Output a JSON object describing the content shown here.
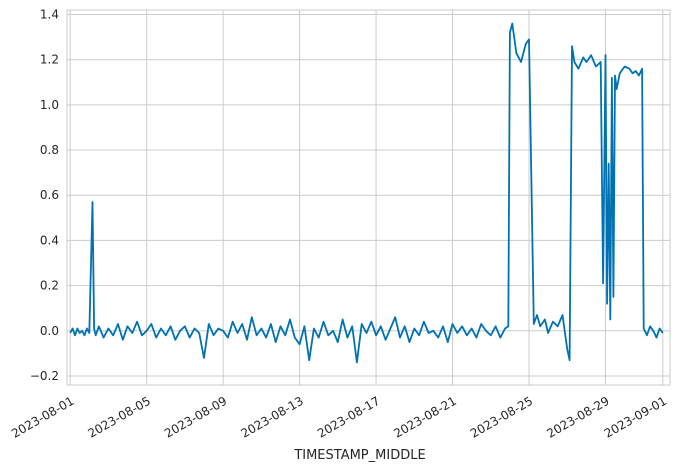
{
  "chart_data": {
    "type": "line",
    "title": "",
    "xlabel": "TIMESTAMP_MIDDLE",
    "ylabel": "",
    "grid": true,
    "legend": "none",
    "line_color": "#0072B2",
    "ylim": [
      -0.24,
      1.42
    ],
    "xlim": [
      "2023-07-31T20:00",
      "2023-09-01T09:00"
    ],
    "x_ticks": [
      "2023-08-01",
      "2023-08-05",
      "2023-08-09",
      "2023-08-13",
      "2023-08-17",
      "2023-08-21",
      "2023-08-25",
      "2023-08-29",
      "2023-09-01"
    ],
    "y_ticks": [
      -0.2,
      0.0,
      0.2,
      0.4,
      0.6,
      0.8,
      1.0,
      1.2,
      1.4
    ],
    "y_tick_labels": [
      "−0.2",
      "0.0",
      "0.2",
      "0.4",
      "0.6",
      "0.8",
      "1.0",
      "1.2",
      "1.4"
    ],
    "series": [
      {
        "x": [
          "2023-08-01T00:00",
          "2023-08-01T03:00",
          "2023-08-01T06:00",
          "2023-08-01T09:00",
          "2023-08-01T12:00",
          "2023-08-01T15:00",
          "2023-08-01T18:00",
          "2023-08-01T21:00",
          "2023-08-02T00:00",
          "2023-08-02T04:00",
          "2023-08-02T06:00",
          "2023-08-02T08:00",
          "2023-08-02T12:00",
          "2023-08-02T18:00",
          "2023-08-03T00:00",
          "2023-08-03T06:00",
          "2023-08-03T12:00",
          "2023-08-03T18:00",
          "2023-08-04T00:00",
          "2023-08-04T06:00",
          "2023-08-04T12:00",
          "2023-08-04T18:00",
          "2023-08-05T00:00",
          "2023-08-05T06:00",
          "2023-08-05T12:00",
          "2023-08-05T18:00",
          "2023-08-06T00:00",
          "2023-08-06T06:00",
          "2023-08-06T12:00",
          "2023-08-06T18:00",
          "2023-08-07T00:00",
          "2023-08-07T06:00",
          "2023-08-07T12:00",
          "2023-08-07T18:00",
          "2023-08-08T00:00",
          "2023-08-08T06:00",
          "2023-08-08T12:00",
          "2023-08-08T18:00",
          "2023-08-09T00:00",
          "2023-08-09T06:00",
          "2023-08-09T12:00",
          "2023-08-09T18:00",
          "2023-08-10T00:00",
          "2023-08-10T06:00",
          "2023-08-10T12:00",
          "2023-08-10T18:00",
          "2023-08-11T00:00",
          "2023-08-11T06:00",
          "2023-08-11T12:00",
          "2023-08-11T18:00",
          "2023-08-12T00:00",
          "2023-08-12T06:00",
          "2023-08-12T12:00",
          "2023-08-12T18:00",
          "2023-08-13T00:00",
          "2023-08-13T06:00",
          "2023-08-13T12:00",
          "2023-08-13T18:00",
          "2023-08-14T00:00",
          "2023-08-14T06:00",
          "2023-08-14T12:00",
          "2023-08-14T18:00",
          "2023-08-15T00:00",
          "2023-08-15T06:00",
          "2023-08-15T12:00",
          "2023-08-15T18:00",
          "2023-08-16T00:00",
          "2023-08-16T06:00",
          "2023-08-16T12:00",
          "2023-08-16T18:00",
          "2023-08-17T00:00",
          "2023-08-17T06:00",
          "2023-08-17T12:00",
          "2023-08-17T18:00",
          "2023-08-18T00:00",
          "2023-08-18T06:00",
          "2023-08-18T12:00",
          "2023-08-18T18:00",
          "2023-08-19T00:00",
          "2023-08-19T06:00",
          "2023-08-19T12:00",
          "2023-08-19T18:00",
          "2023-08-20T00:00",
          "2023-08-20T06:00",
          "2023-08-20T12:00",
          "2023-08-20T18:00",
          "2023-08-21T00:00",
          "2023-08-21T06:00",
          "2023-08-21T12:00",
          "2023-08-21T18:00",
          "2023-08-22T00:00",
          "2023-08-22T06:00",
          "2023-08-22T12:00",
          "2023-08-22T18:00",
          "2023-08-23T00:00",
          "2023-08-23T06:00",
          "2023-08-23T12:00",
          "2023-08-23T18:00",
          "2023-08-23T22:00",
          "2023-08-24T00:00",
          "2023-08-24T03:00",
          "2023-08-24T08:00",
          "2023-08-24T14:00",
          "2023-08-24T20:00",
          "2023-08-25T00:00",
          "2023-08-25T06:00",
          "2023-08-25T10:00",
          "2023-08-25T14:00",
          "2023-08-25T20:00",
          "2023-08-26T00:00",
          "2023-08-26T06:00",
          "2023-08-26T12:00",
          "2023-08-26T18:00",
          "2023-08-27T00:00",
          "2023-08-27T03:00",
          "2023-08-27T06:00",
          "2023-08-27T09:00",
          "2023-08-27T14:00",
          "2023-08-27T20:00",
          "2023-08-28T00:00",
          "2023-08-28T06:00",
          "2023-08-28T12:00",
          "2023-08-28T18:00",
          "2023-08-28T21:00",
          "2023-08-29T00:00",
          "2023-08-29T02:00",
          "2023-08-29T04:00",
          "2023-08-29T06:00",
          "2023-08-29T08:00",
          "2023-08-29T10:00",
          "2023-08-29T12:00",
          "2023-08-29T14:00",
          "2023-08-29T18:00",
          "2023-08-30T00:00",
          "2023-08-30T06:00",
          "2023-08-30T10:00",
          "2023-08-30T14:00",
          "2023-08-30T18:00",
          "2023-08-30T22:00",
          "2023-08-31T00:00",
          "2023-08-31T04:00",
          "2023-08-31T08:00",
          "2023-08-31T12:00",
          "2023-08-31T16:00",
          "2023-08-31T20:00",
          "2023-09-01T00:00"
        ],
        "y": [
          -0.01,
          0.01,
          -0.02,
          0.01,
          -0.01,
          0.0,
          -0.02,
          0.01,
          -0.01,
          0.57,
          0.01,
          -0.02,
          0.02,
          -0.03,
          0.01,
          -0.02,
          0.03,
          -0.04,
          0.02,
          -0.01,
          0.04,
          -0.02,
          0.0,
          0.03,
          -0.03,
          0.01,
          -0.02,
          0.02,
          -0.04,
          0.0,
          0.02,
          -0.03,
          0.01,
          -0.01,
          -0.12,
          0.03,
          -0.02,
          0.01,
          0.0,
          -0.03,
          0.04,
          -0.01,
          0.03,
          -0.04,
          0.06,
          -0.02,
          0.01,
          -0.03,
          0.03,
          -0.05,
          0.02,
          -0.02,
          0.05,
          -0.03,
          -0.06,
          0.02,
          -0.13,
          0.01,
          -0.03,
          0.04,
          -0.02,
          0.0,
          -0.05,
          0.05,
          -0.03,
          0.02,
          -0.14,
          0.03,
          -0.01,
          0.04,
          -0.02,
          0.02,
          -0.04,
          0.01,
          0.06,
          -0.03,
          0.02,
          -0.05,
          0.01,
          -0.02,
          0.04,
          -0.01,
          0.0,
          -0.03,
          0.02,
          -0.05,
          0.03,
          -0.01,
          0.02,
          -0.02,
          0.01,
          -0.03,
          0.03,
          0.0,
          -0.02,
          0.02,
          -0.03,
          0.01,
          0.02,
          1.32,
          1.36,
          1.23,
          1.19,
          1.27,
          1.29,
          0.03,
          0.07,
          0.02,
          0.05,
          -0.01,
          0.04,
          0.02,
          0.07,
          -0.08,
          -0.13,
          1.26,
          1.19,
          1.16,
          1.21,
          1.19,
          1.22,
          1.17,
          1.19,
          0.21,
          1.22,
          0.12,
          0.74,
          0.05,
          1.12,
          0.15,
          1.13,
          1.07,
          1.14,
          1.17,
          1.16,
          1.14,
          1.15,
          1.13,
          1.16,
          0.01,
          -0.02,
          0.02,
          0.0,
          -0.03,
          0.01,
          -0.01
        ]
      }
    ]
  }
}
